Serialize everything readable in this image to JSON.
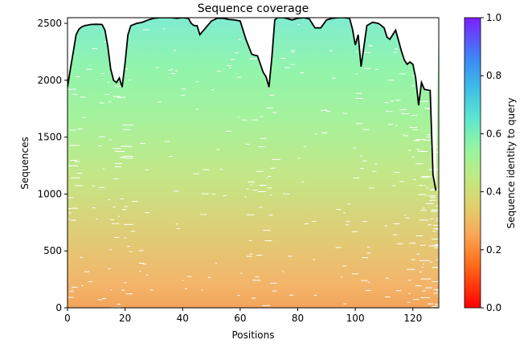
{
  "chart_data": {
    "type": "heatmap",
    "title": "Sequence coverage",
    "xlabel": "Positions",
    "ylabel": "Sequences",
    "xlim": [
      0,
      129
    ],
    "ylim": [
      0,
      2550
    ],
    "xticks": [
      0,
      20,
      40,
      60,
      80,
      100,
      120
    ],
    "yticks": [
      0,
      500,
      1000,
      1500,
      2000,
      2500
    ],
    "colorbar": {
      "label": "Sequence identity to query",
      "colormap": "rainbow_r",
      "range": [
        0.0,
        1.0
      ],
      "ticks": [
        "0.0",
        "0.2",
        "0.4",
        "0.6",
        "0.8",
        "1.0"
      ]
    },
    "identity_gradient": {
      "bottom_identity": 0.25,
      "top_identity": 0.55
    },
    "coverage_line": {
      "name": "coverage",
      "color": "#000000",
      "x": [
        0,
        1,
        2,
        3,
        4,
        5,
        6,
        7,
        8,
        10,
        12,
        13,
        14,
        15,
        16,
        17,
        18,
        19,
        20,
        21,
        22,
        24,
        26,
        28,
        30,
        32,
        34,
        36,
        38,
        40,
        42,
        43,
        44,
        45,
        46,
        48,
        50,
        52,
        54,
        56,
        58,
        60,
        62,
        64,
        65,
        66,
        68,
        69,
        70,
        71,
        72,
        73,
        74,
        75,
        76,
        78,
        80,
        82,
        84,
        85,
        86,
        88,
        90,
        92,
        94,
        96,
        98,
        99,
        100,
        101,
        102,
        104,
        106,
        108,
        110,
        111,
        112,
        114,
        115,
        116,
        117,
        118,
        119,
        120,
        121,
        122,
        123,
        124,
        126,
        127,
        128
      ],
      "y": [
        1940,
        2100,
        2250,
        2400,
        2450,
        2470,
        2480,
        2485,
        2490,
        2492,
        2490,
        2440,
        2300,
        2100,
        2000,
        1980,
        2020,
        1940,
        2150,
        2400,
        2480,
        2500,
        2510,
        2530,
        2545,
        2550,
        2550,
        2550,
        2545,
        2550,
        2545,
        2500,
        2480,
        2480,
        2400,
        2460,
        2520,
        2545,
        2545,
        2535,
        2530,
        2520,
        2360,
        2230,
        2220,
        2215,
        2070,
        2030,
        1940,
        2200,
        2530,
        2550,
        2550,
        2550,
        2545,
        2530,
        2545,
        2550,
        2540,
        2500,
        2460,
        2460,
        2530,
        2545,
        2550,
        2550,
        2545,
        2450,
        2310,
        2400,
        2120,
        2480,
        2510,
        2500,
        2460,
        2380,
        2360,
        2440,
        2350,
        2260,
        2180,
        2140,
        2160,
        2140,
        2020,
        1780,
        1980,
        1920,
        1910,
        1170,
        1030
      ]
    }
  }
}
